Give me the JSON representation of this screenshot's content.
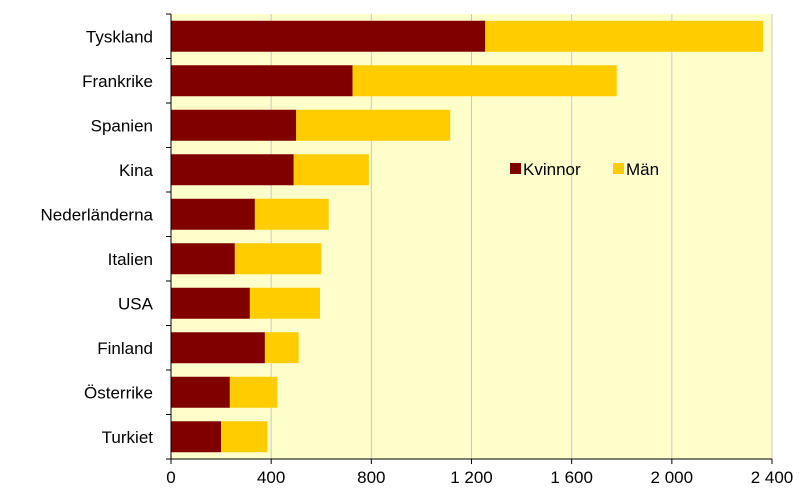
{
  "chart_data": {
    "type": "bar",
    "orientation": "horizontal",
    "stacked": true,
    "title": "",
    "xlabel": "",
    "ylabel": "",
    "categories": [
      "Tyskland",
      "Frankrike",
      "Spanien",
      "Kina",
      "Nederländerna",
      "Italien",
      "USA",
      "Finland",
      "Österrike",
      "Turkiet"
    ],
    "series": [
      {
        "name": "Kvinnor",
        "color": "#800000",
        "values": [
          1255,
          725,
          500,
          490,
          335,
          255,
          315,
          375,
          235,
          200
        ]
      },
      {
        "name": "Män",
        "color": "#FFCC00",
        "values": [
          1110,
          1055,
          615,
          300,
          295,
          345,
          280,
          135,
          190,
          185
        ]
      }
    ],
    "xlim": [
      0,
      2400
    ],
    "xticks": [
      0,
      400,
      800,
      1200,
      1600,
      2000,
      2400
    ],
    "xtick_labels": [
      "0",
      "400",
      "800",
      "1 200",
      "1 600",
      "2 000",
      "2 400"
    ],
    "grid": "vertical",
    "plot_background": "#FFFFCC",
    "legend_position": "inside-right"
  }
}
